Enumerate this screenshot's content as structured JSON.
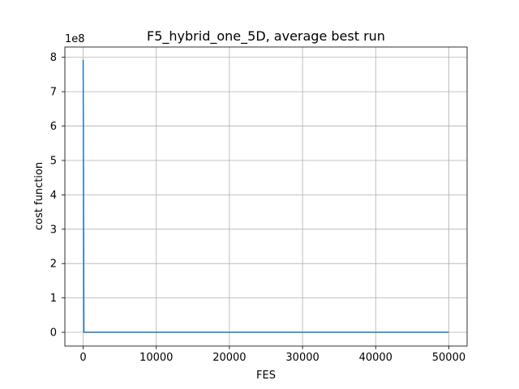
{
  "chart_data": {
    "type": "line",
    "title": "F5_hybrid_one_5D, average best run",
    "xlabel": "FES",
    "ylabel": "cost function",
    "y_offset_label": "1e8",
    "xlim": [
      -2500,
      52500
    ],
    "ylim": [
      -0.4,
      8.3
    ],
    "y_scale": 100000000,
    "grid": true,
    "legend": "none",
    "line_color": "#1f77b4",
    "x_ticks": [
      0,
      10000,
      20000,
      30000,
      40000,
      50000
    ],
    "x_tick_labels": [
      "0",
      "10000",
      "20000",
      "30000",
      "40000",
      "50000"
    ],
    "y_ticks": [
      0,
      1,
      2,
      3,
      4,
      5,
      6,
      7,
      8
    ],
    "y_tick_labels": [
      "0",
      "1",
      "2",
      "3",
      "4",
      "5",
      "6",
      "7",
      "8"
    ],
    "series": [
      {
        "x": [
          1,
          100,
          200,
          500,
          1000,
          5000,
          10000,
          20000,
          30000,
          40000,
          50000
        ],
        "y": [
          7.93,
          0.0,
          0.0,
          0.0,
          0.0,
          0.0,
          0.0,
          0.0,
          0.0,
          0.0,
          0.0
        ]
      }
    ]
  }
}
